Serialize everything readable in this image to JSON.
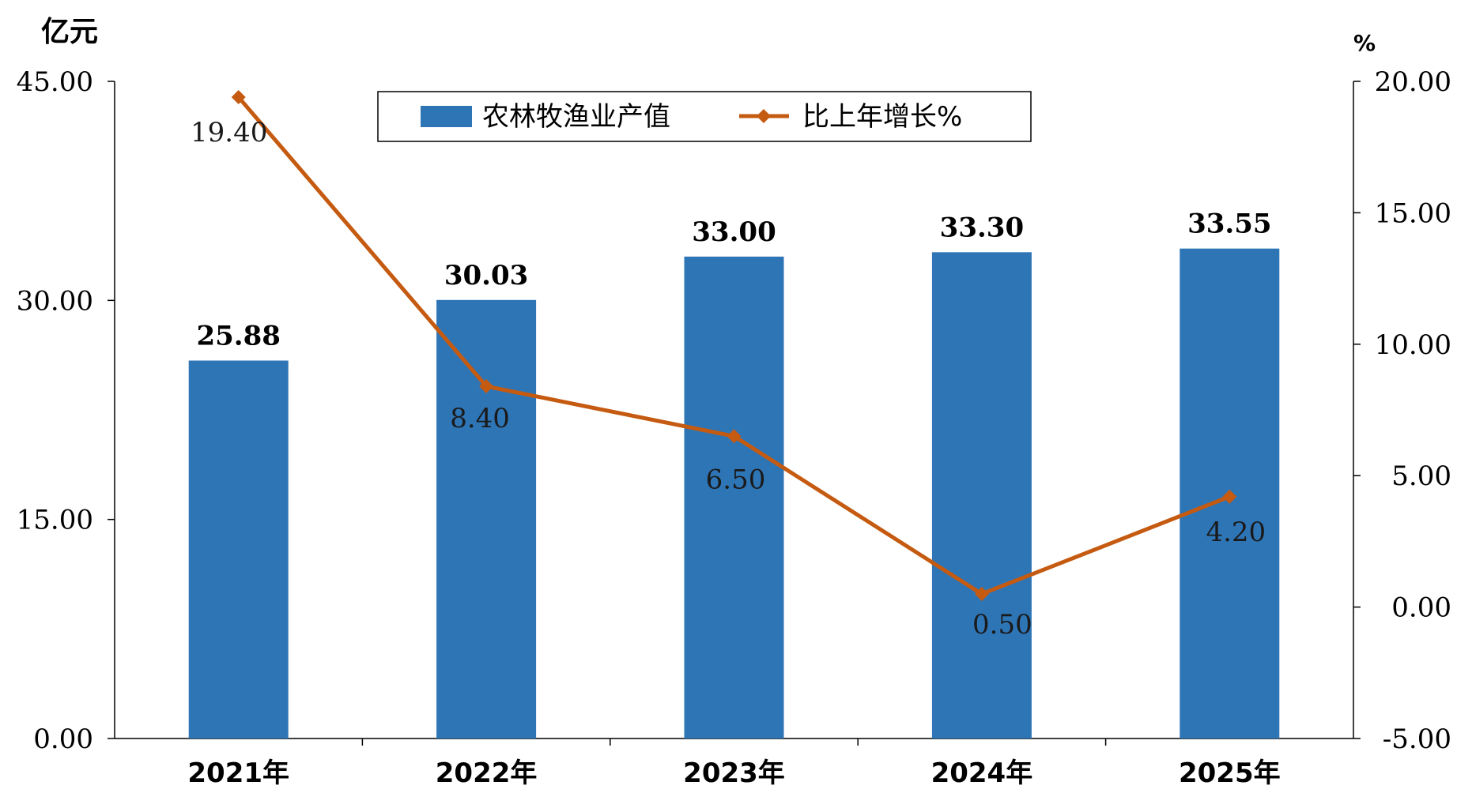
{
  "chart_data": {
    "type": "bar",
    "categories": [
      "2021年",
      "2022年",
      "2023年",
      "2024年",
      "2025年"
    ],
    "series": [
      {
        "name": "农林牧渔业产值",
        "type": "bar",
        "axis": "left",
        "values": [
          25.88,
          30.03,
          33.0,
          33.3,
          33.55
        ],
        "labels": [
          "25.88",
          "30.03",
          "33.00",
          "33.30",
          "33.55"
        ],
        "color": "#2E75B6"
      },
      {
        "name": "比上年增长%",
        "type": "line",
        "axis": "right",
        "values": [
          19.4,
          8.4,
          6.5,
          0.5,
          4.2
        ],
        "labels": [
          "19.40",
          "8.40",
          "6.50",
          "0.50",
          "4.20"
        ],
        "color": "#C55A11"
      }
    ],
    "y_left": {
      "unit": "亿元",
      "ylim": [
        0,
        45
      ],
      "ticks": [
        0,
        15,
        30,
        45
      ],
      "tick_labels": [
        "0.00",
        "15.00",
        "30.00",
        "45.00"
      ]
    },
    "y_right": {
      "unit": "%",
      "ylim": [
        -5,
        20
      ],
      "ticks": [
        -5,
        0,
        5,
        10,
        15,
        20
      ],
      "tick_labels": [
        "-5.00",
        "0.00",
        "5.00",
        "10.00",
        "15.00",
        "20.00"
      ]
    },
    "legend_position": "top-center",
    "grid": false
  }
}
